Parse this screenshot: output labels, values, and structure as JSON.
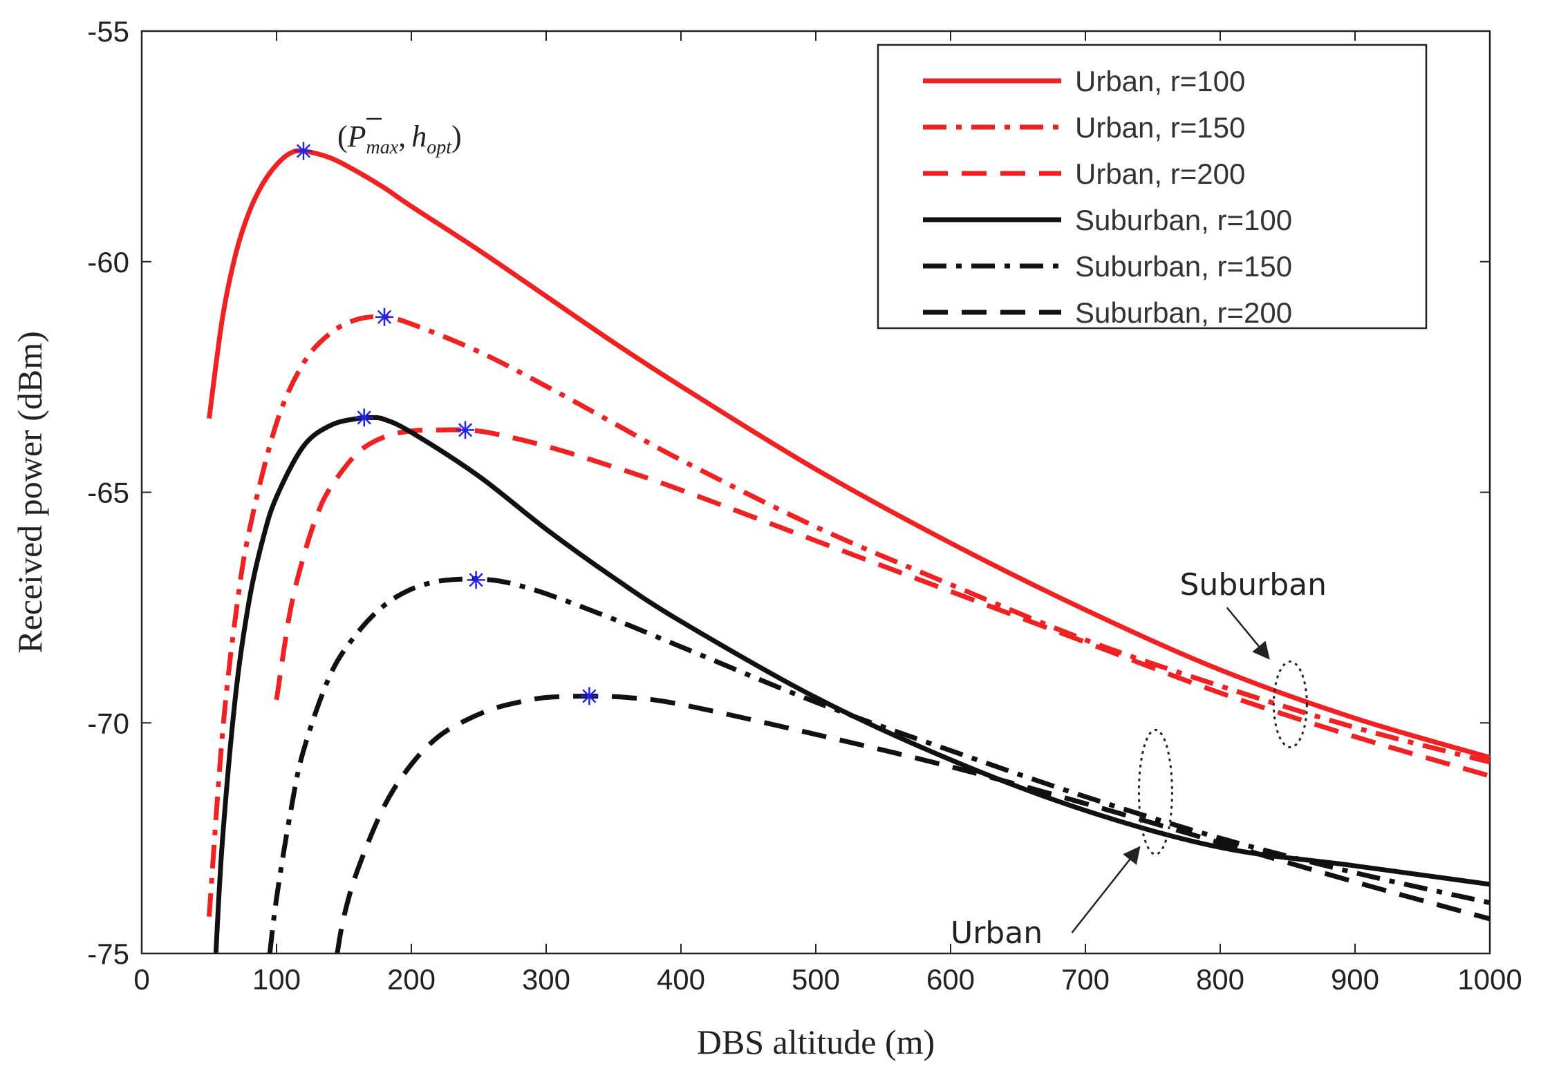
{
  "chart_data": {
    "type": "line",
    "title": "",
    "xlabel": "DBS altitude (m)",
    "ylabel": "Received power (dBm)",
    "xlim": [
      0,
      1000
    ],
    "ylim": [
      -75,
      -55
    ],
    "xticks": [
      "0",
      "100",
      "200",
      "300",
      "400",
      "500",
      "600",
      "700",
      "800",
      "900",
      "1000"
    ],
    "yticks": [
      "-55",
      "-60",
      "-65",
      "-70",
      "-75"
    ],
    "grid": false,
    "legend_position": "top-right",
    "series": [
      {
        "name": "Urban, r=100",
        "color": "#ee2222",
        "style": "solid",
        "x": [
          50,
          60,
          70,
          80,
          90,
          100,
          110,
          120,
          140,
          160,
          180,
          200,
          250,
          300,
          350,
          400,
          500,
          600,
          700,
          800,
          900,
          1000
        ],
        "y": [
          -63.4,
          -61.2,
          -59.8,
          -58.9,
          -58.3,
          -57.9,
          -57.65,
          -57.6,
          -57.75,
          -58.05,
          -58.4,
          -58.8,
          -59.75,
          -60.75,
          -61.75,
          -62.7,
          -64.5,
          -66.1,
          -67.55,
          -68.85,
          -69.9,
          -70.75
        ]
      },
      {
        "name": "Urban, r=150",
        "color": "#ee2222",
        "style": "dashdot",
        "x": [
          50,
          60,
          70,
          80,
          100,
          120,
          140,
          160,
          180,
          200,
          250,
          300,
          350,
          400,
          500,
          600,
          700,
          800,
          900,
          1000
        ],
        "y": [
          -74.2,
          -70.2,
          -67.6,
          -65.8,
          -63.5,
          -62.2,
          -61.55,
          -61.25,
          -61.2,
          -61.35,
          -61.95,
          -62.7,
          -63.5,
          -64.3,
          -65.75,
          -67.0,
          -68.2,
          -69.2,
          -70.1,
          -70.85
        ]
      },
      {
        "name": "Urban, r=200",
        "color": "#ee2222",
        "style": "dashed",
        "x": [
          100,
          110,
          120,
          130,
          140,
          160,
          180,
          200,
          220,
          240,
          260,
          300,
          350,
          400,
          500,
          600,
          700,
          800,
          900,
          1000
        ],
        "y": [
          -69.5,
          -67.6,
          -66.4,
          -65.5,
          -64.9,
          -64.15,
          -63.8,
          -63.67,
          -63.65,
          -63.65,
          -63.72,
          -64.0,
          -64.45,
          -64.95,
          -66.05,
          -67.15,
          -68.25,
          -69.35,
          -70.3,
          -71.15
        ]
      },
      {
        "name": "Suburban, r=100",
        "color": "#111111",
        "style": "solid",
        "x": [
          55,
          60,
          70,
          80,
          90,
          100,
          120,
          140,
          160,
          170,
          180,
          200,
          250,
          300,
          350,
          400,
          500,
          600,
          700,
          800,
          900,
          1000
        ],
        "y": [
          -75.0,
          -72.5,
          -69.3,
          -67.3,
          -66.0,
          -65.1,
          -64.0,
          -63.55,
          -63.4,
          -63.38,
          -63.42,
          -63.7,
          -64.65,
          -65.8,
          -66.85,
          -67.8,
          -69.45,
          -70.8,
          -71.9,
          -72.7,
          -73.1,
          -73.5
        ]
      },
      {
        "name": "Suburban, r=150",
        "color": "#111111",
        "style": "dashdot",
        "x": [
          95,
          100,
          110,
          120,
          140,
          160,
          180,
          200,
          220,
          240,
          250,
          270,
          300,
          350,
          400,
          500,
          600,
          700,
          800,
          900,
          1000
        ],
        "y": [
          -75.0,
          -73.8,
          -72.0,
          -70.6,
          -68.95,
          -68.05,
          -67.45,
          -67.1,
          -66.93,
          -66.88,
          -66.88,
          -66.95,
          -67.2,
          -67.75,
          -68.35,
          -69.55,
          -70.6,
          -71.6,
          -72.5,
          -73.25,
          -73.9
        ]
      },
      {
        "name": "Suburban, r=200",
        "color": "#111111",
        "style": "dashed",
        "x": [
          145,
          150,
          160,
          180,
          200,
          220,
          240,
          260,
          280,
          300,
          330,
          360,
          400,
          500,
          600,
          700,
          800,
          900,
          1000
        ],
        "y": [
          -75.0,
          -74.2,
          -73.2,
          -71.8,
          -70.9,
          -70.3,
          -69.95,
          -69.7,
          -69.55,
          -69.45,
          -69.42,
          -69.45,
          -69.6,
          -70.25,
          -70.95,
          -71.75,
          -72.6,
          -73.45,
          -74.25
        ]
      }
    ],
    "optimal_points": {
      "marker": "*",
      "color": "#2222ee",
      "x": [
        120,
        180,
        165,
        240,
        248,
        332
      ],
      "y": [
        -57.6,
        -61.2,
        -63.38,
        -63.65,
        -66.9,
        -69.42
      ]
    },
    "annotations": [
      {
        "text": "Suburban",
        "x": 770,
        "y": -67.0,
        "points_to": [
          852,
          -69.6
        ]
      },
      {
        "text": "Urban",
        "x": 600,
        "y": -74.55,
        "points_to": [
          752,
          -71.5
        ]
      }
    ],
    "popt_label": {
      "open": "(",
      "p": "P",
      "p_sub": "max",
      "sep": ",",
      "h": "h",
      "h_sub": "opt",
      "close": ")",
      "x": 145,
      "y": -57.2
    }
  }
}
